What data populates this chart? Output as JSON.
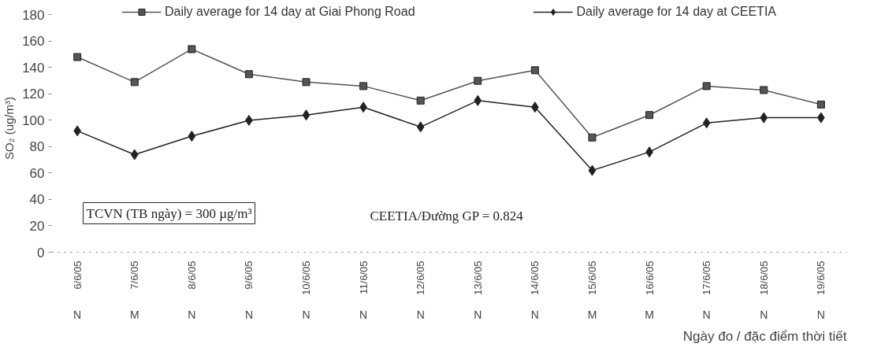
{
  "chart_data": {
    "type": "line",
    "ylabel": "SO₂ (ug/m³)",
    "xlabel": "Ngày đo / đặc điểm thời tiết",
    "categories": [
      "6/6/05",
      "7/6/05",
      "8/6/05",
      "9/6/05",
      "10/6/05",
      "11/6/05",
      "12/6/05",
      "13/6/05",
      "14/6/05",
      "15/6/05",
      "16/6/05",
      "17/6/05",
      "18/6/05",
      "19/6/05"
    ],
    "series": [
      {
        "name": "Daily average for 14 day at Giai Phong Road",
        "color": "#555555",
        "marker": "square",
        "values": [
          148,
          129,
          154,
          135,
          129,
          126,
          115,
          130,
          138,
          87,
          104,
          126,
          123,
          112
        ]
      },
      {
        "name": "Daily average for 14 day at CEETIA",
        "color": "#222222",
        "marker": "diamond",
        "values": [
          92,
          74,
          88,
          100,
          104,
          110,
          95,
          115,
          110,
          62,
          76,
          98,
          102,
          102
        ]
      }
    ],
    "ylim": [
      0,
      180
    ],
    "yticks": [
      0,
      20,
      40,
      60,
      80,
      100,
      120,
      140,
      160,
      180
    ],
    "grid": false,
    "legend": "top",
    "line_style": "solid",
    "annotations": [
      "TCVN (TB ngày) = 300 µg/m³",
      "CEETIA/Đường GP = 0.824",
      "N",
      "M",
      "N",
      "N",
      "N",
      "N",
      "N",
      "N",
      "N",
      "M",
      "M",
      "N",
      "N",
      "N"
    ]
  }
}
